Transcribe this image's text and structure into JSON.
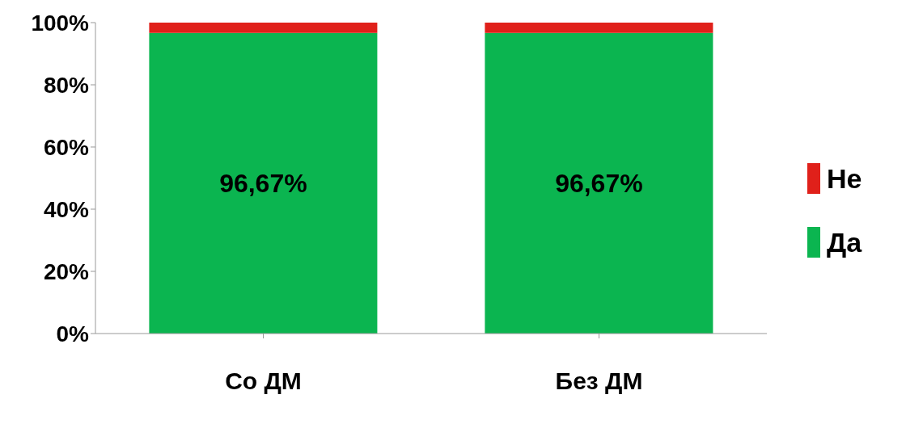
{
  "chart_data": {
    "type": "bar",
    "stacked": true,
    "categories": [
      "Со ДМ",
      "Без ДМ"
    ],
    "series": [
      {
        "name": "Да",
        "color": "#0bb550",
        "values": [
          96.67,
          96.67
        ],
        "value_labels": [
          "96,67%",
          "96,67%"
        ]
      },
      {
        "name": "Не",
        "color": "#e0201a",
        "values": [
          3.33,
          3.33
        ],
        "value_labels": [
          null,
          null
        ]
      }
    ],
    "ylim": [
      0,
      100
    ],
    "yticks": [
      {
        "value": 0,
        "label": "0%"
      },
      {
        "value": 20,
        "label": "20%"
      },
      {
        "value": 40,
        "label": "40%"
      },
      {
        "value": 60,
        "label": "60%"
      },
      {
        "value": 80,
        "label": "80%"
      },
      {
        "value": 100,
        "label": "100%"
      }
    ],
    "grid": false,
    "legend": "right"
  }
}
